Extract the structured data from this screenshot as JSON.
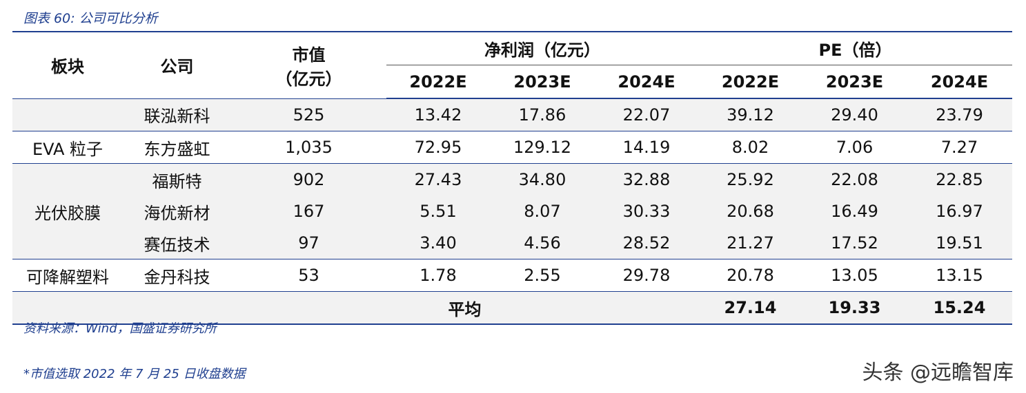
{
  "header": {
    "title": "图表 60:  公司可比分析"
  },
  "table": {
    "headers": {
      "sector": "板块",
      "company": "公司",
      "market_cap": [
        "市值",
        "（亿元）"
      ],
      "net_profit": "净利润（亿元）",
      "pe": "PE（倍）",
      "years": [
        "2022E",
        "2023E",
        "2024E"
      ]
    },
    "groups": [
      {
        "sector": null,
        "rows": [
          [
            "联泓新科",
            "525",
            "13.42",
            "17.86",
            "22.07",
            "39.12",
            "29.40",
            "23.79"
          ]
        ]
      },
      {
        "sector": "EVA 粒子",
        "rows": [
          [
            "东方盛虹",
            "1,035",
            "72.95",
            "129.12",
            "14.19",
            "8.02",
            "7.06",
            "7.27"
          ]
        ]
      },
      {
        "sector": "光伏胶膜",
        "rows": [
          [
            "福斯特",
            "902",
            "27.43",
            "34.80",
            "32.88",
            "25.92",
            "22.08",
            "22.85"
          ],
          [
            "海优新材",
            "167",
            "5.51",
            "8.07",
            "30.33",
            "20.68",
            "16.49",
            "16.97"
          ],
          [
            "赛伍技术",
            "97",
            "3.40",
            "4.56",
            "28.52",
            "21.27",
            "17.52",
            "19.51"
          ]
        ]
      },
      {
        "sector": "可降解塑料",
        "rows": [
          [
            "金丹科技",
            "53",
            "1.78",
            "2.55",
            "29.78",
            "20.78",
            "13.05",
            "13.15"
          ]
        ]
      }
    ],
    "average": {
      "label": "平均",
      "pe": [
        "27.14",
        "19.33",
        "15.24"
      ]
    }
  },
  "footer": {
    "source": "资料来源：Wind，国盛证券研究所",
    "note": "*市值选取 2022 年 7 月 25 日收盘数据",
    "watermark": "头条 @远瞻智库"
  }
}
